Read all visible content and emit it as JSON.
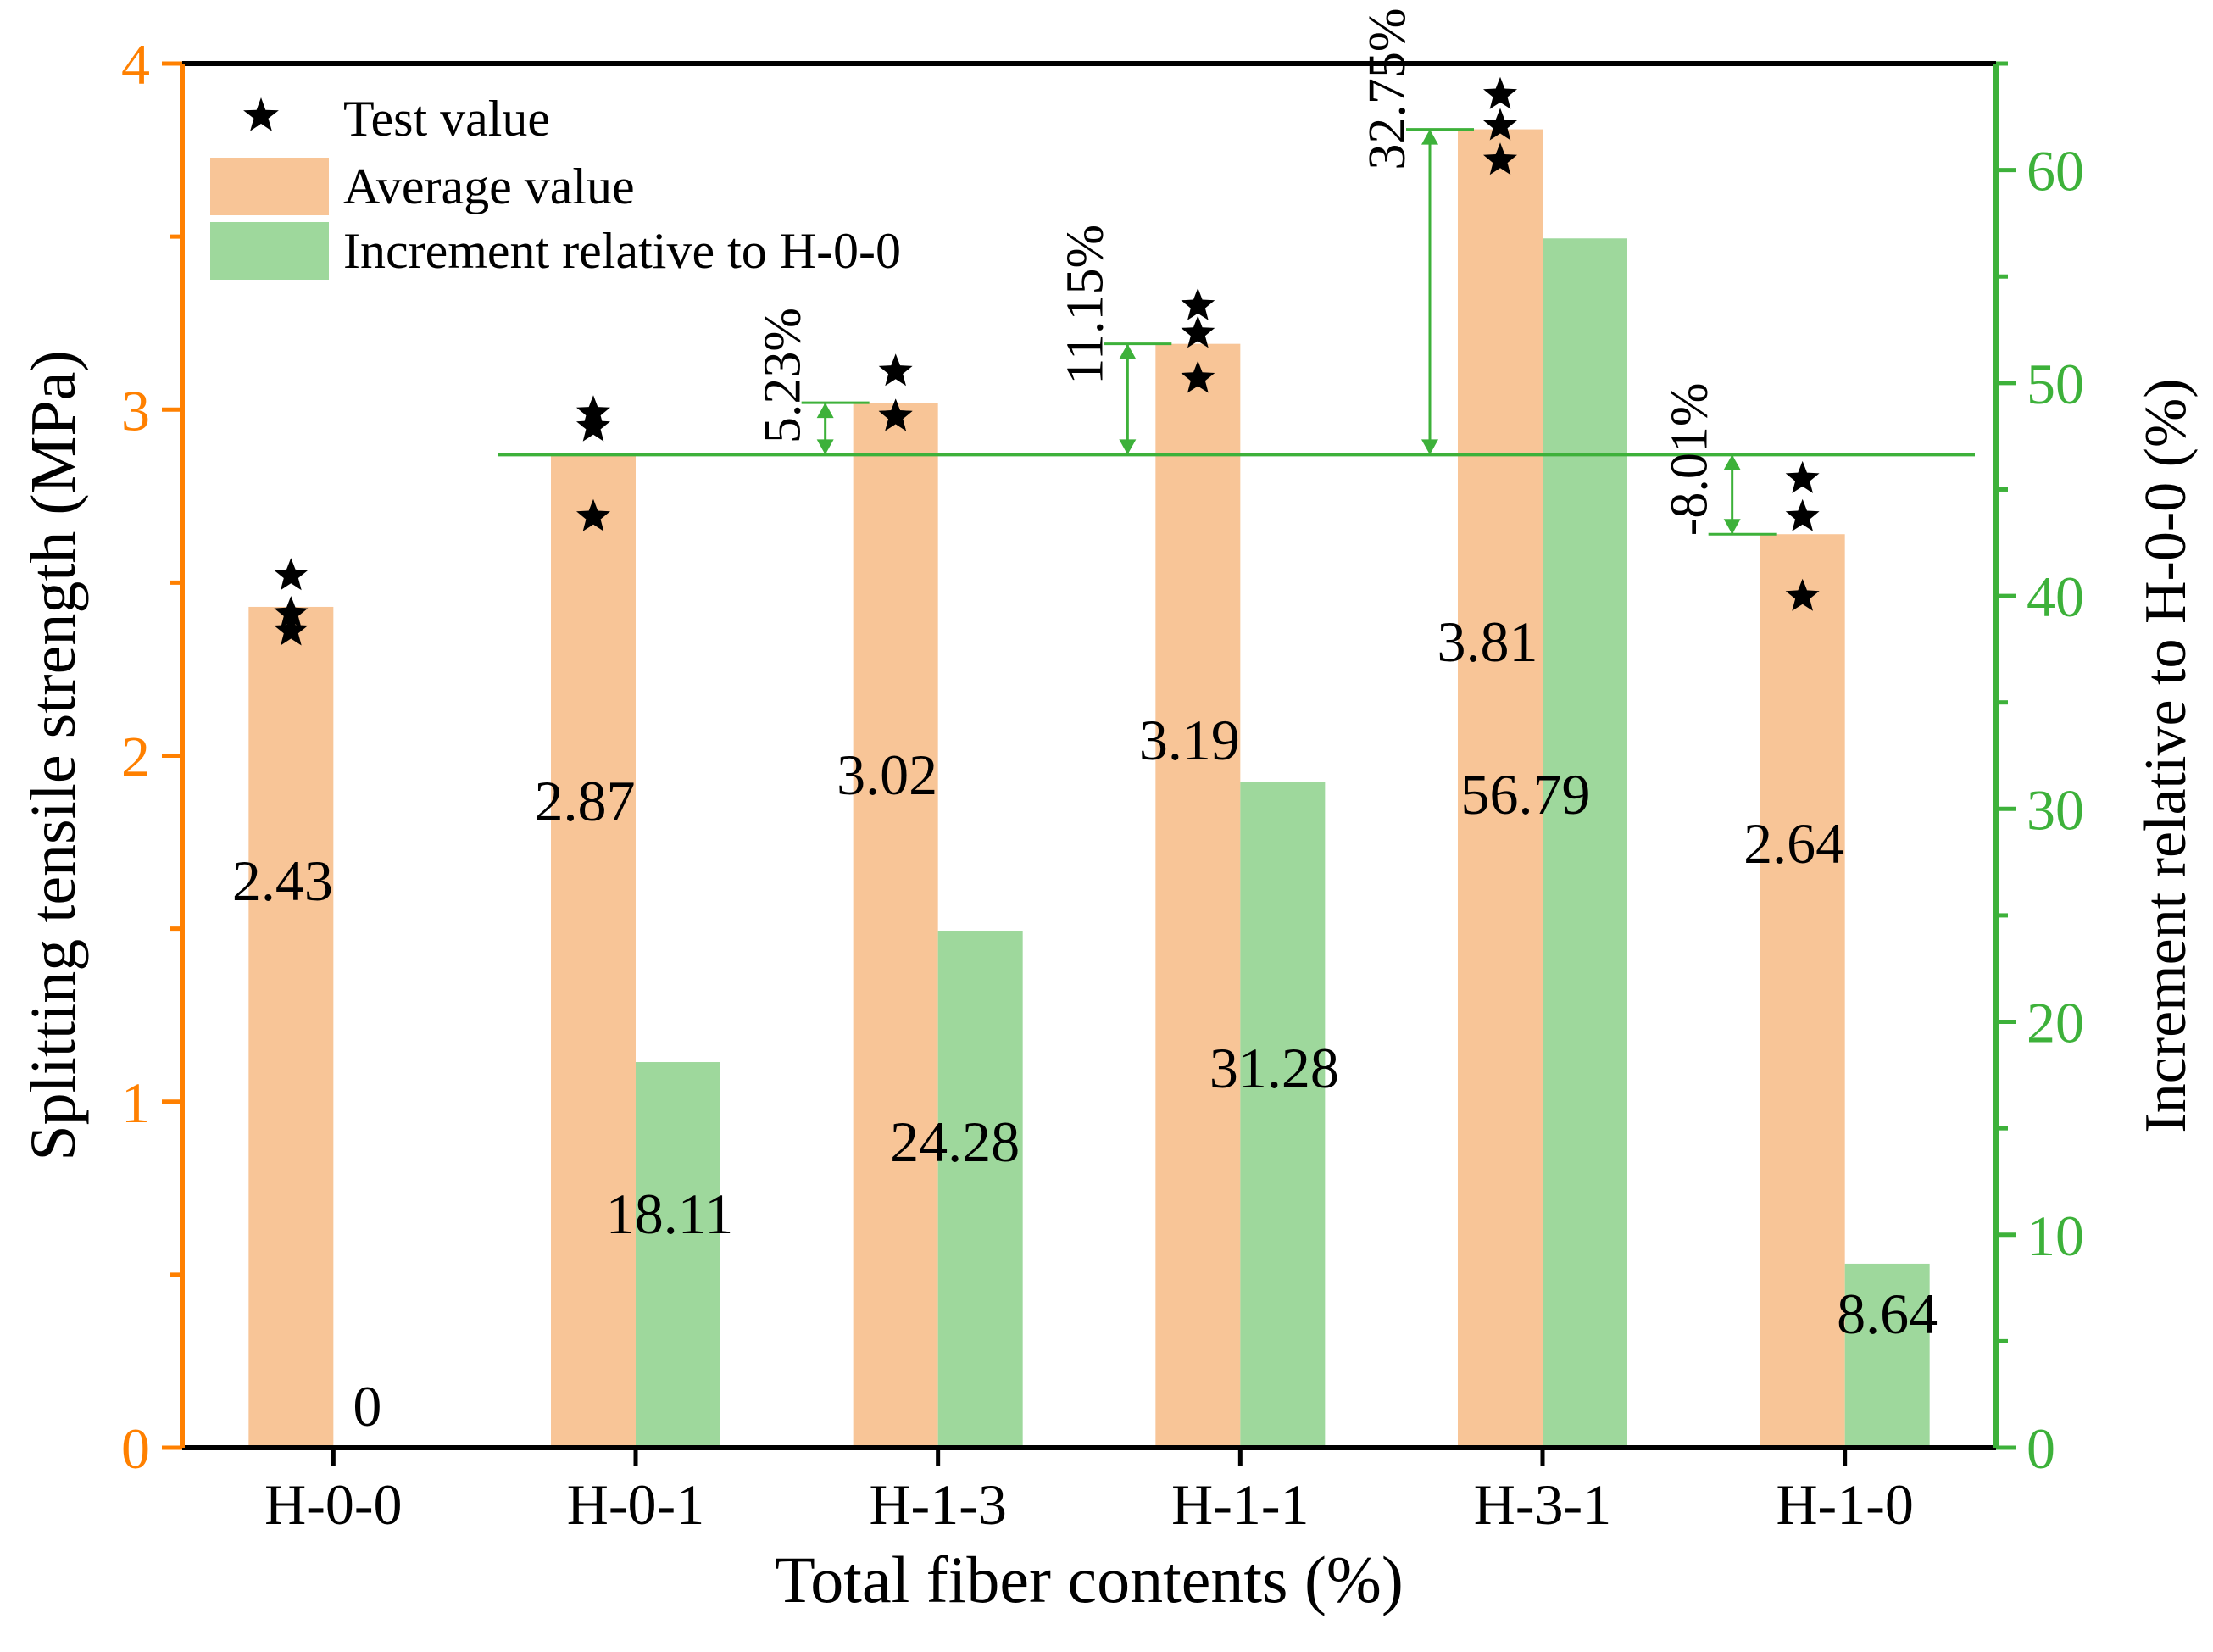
{
  "chart_data": {
    "type": "bar",
    "xlabel": "Total fiber contents (%)",
    "ylabel_left": "Splitting tensile strength (MPa)",
    "ylabel_right": "Increment relative to H-0-0 (%)",
    "ylim_left": [
      0,
      4
    ],
    "ylim_right": [
      0,
      65
    ],
    "left_ticks": [
      "0",
      "1",
      "2",
      "3",
      "4"
    ],
    "right_ticks": [
      "0",
      "10",
      "20",
      "30",
      "40",
      "50",
      "60"
    ],
    "categories": [
      "H-0-0",
      "H-0-1",
      "H-1-3",
      "H-1-1",
      "H-3-1",
      "H-1-0"
    ],
    "series": [
      {
        "name": "Average value",
        "axis": "left",
        "color": "#F8C597",
        "values": [
          2.43,
          2.87,
          3.02,
          3.19,
          3.81,
          2.64
        ],
        "labels": [
          "2.43",
          "2.87",
          "3.02",
          "3.19",
          "3.81",
          "2.64"
        ]
      },
      {
        "name": "Increment relative to H-0-0",
        "axis": "right",
        "color": "#9ED89C",
        "values": [
          0,
          18.11,
          24.28,
          31.28,
          56.79,
          8.64
        ],
        "labels": [
          "0",
          "18.11",
          "24.28",
          "31.28",
          "56.79",
          "8.64"
        ]
      }
    ],
    "test_values": [
      [
        2.52,
        2.41,
        2.36
      ],
      [
        2.99,
        2.95,
        2.69
      ],
      [
        3.11,
        2.98,
        2.98
      ],
      [
        3.3,
        3.22,
        3.09
      ],
      [
        3.91,
        3.82,
        3.72
      ],
      [
        2.8,
        2.69,
        2.46
      ]
    ],
    "test_series_name": "Test value",
    "reference_line": {
      "axis": "left",
      "value": 2.87,
      "color": "#3DB13A"
    },
    "annotations": [
      {
        "category": "H-1-3",
        "from": 2.87,
        "to": 3.02,
        "label": "5.23%"
      },
      {
        "category": "H-1-1",
        "from": 2.87,
        "to": 3.19,
        "label": "11.15%"
      },
      {
        "category": "H-3-1",
        "from": 2.87,
        "to": 3.81,
        "label": "32.75%"
      },
      {
        "category": "H-1-0",
        "from": 2.87,
        "to": 2.64,
        "label": "-8.01%"
      }
    ],
    "left_axis_color": "#FF8000",
    "right_axis_color": "#3DB13A",
    "legend": {
      "position": "top-left",
      "items": [
        "Test value",
        "Average value",
        "Increment relative to H-0-0"
      ]
    }
  }
}
